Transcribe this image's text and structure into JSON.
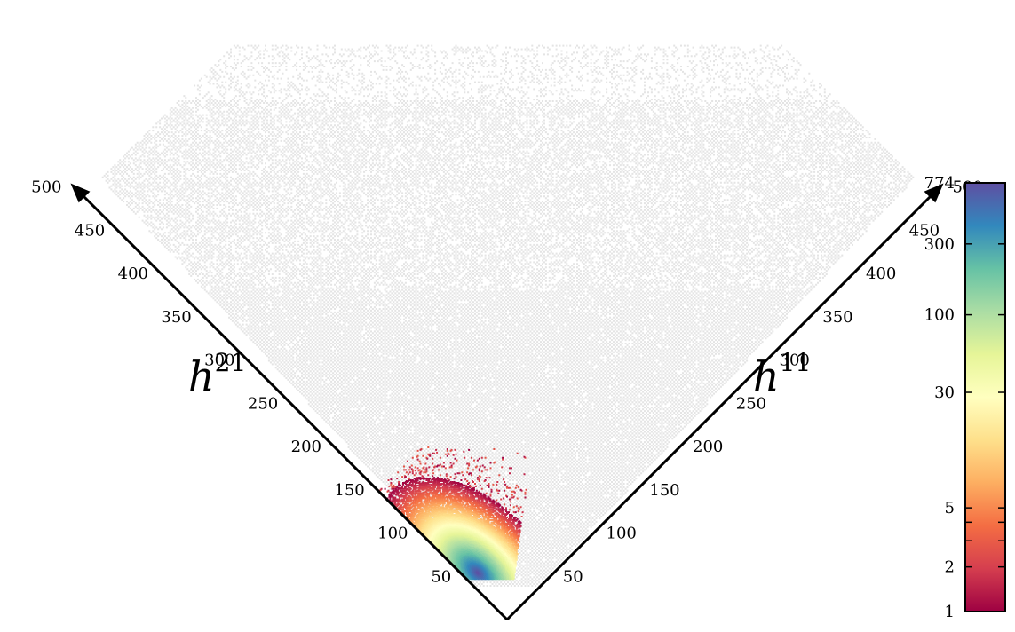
{
  "chart_data": {
    "type": "heatmap",
    "title": "",
    "left_axis": {
      "label_base": "h",
      "label_sup": "21",
      "ticks": [
        50,
        100,
        150,
        200,
        250,
        300,
        350,
        400,
        450,
        500
      ],
      "range": [
        0,
        500
      ]
    },
    "right_axis": {
      "label_base": "h",
      "label_sup": "11",
      "ticks": [
        50,
        100,
        150,
        200,
        250,
        300,
        350,
        400,
        450,
        500
      ],
      "range": [
        0,
        500
      ]
    },
    "colorbar": {
      "min": 1,
      "max": 774,
      "scale": "log",
      "ticks": [
        {
          "value": 1,
          "label": "1"
        },
        {
          "value": 2,
          "label": "2"
        },
        {
          "value": 3,
          "label": ""
        },
        {
          "value": 4,
          "label": ""
        },
        {
          "value": 5,
          "label": "5"
        },
        {
          "value": 30,
          "label": "30"
        },
        {
          "value": 100,
          "label": "100"
        },
        {
          "value": 300,
          "label": "300"
        },
        {
          "value": 774,
          "label": "774"
        }
      ],
      "colormap": "Spectral",
      "colors": [
        "#9e0142",
        "#d53e4f",
        "#f46d43",
        "#fdae61",
        "#fee08b",
        "#ffffbf",
        "#e6f598",
        "#abdda4",
        "#66c2a5",
        "#3288bd",
        "#5e4fa2"
      ]
    },
    "background_color": "#e4e4e4",
    "background_region": {
      "h11_max": 491,
      "h21_max": 491,
      "sum_min": 0
    },
    "colored_region": {
      "h11_range": [
        1,
        110
      ],
      "h21_range": [
        1,
        150
      ],
      "peak_density": {
        "h11": 10,
        "h21": 45,
        "count": 774
      }
    }
  }
}
